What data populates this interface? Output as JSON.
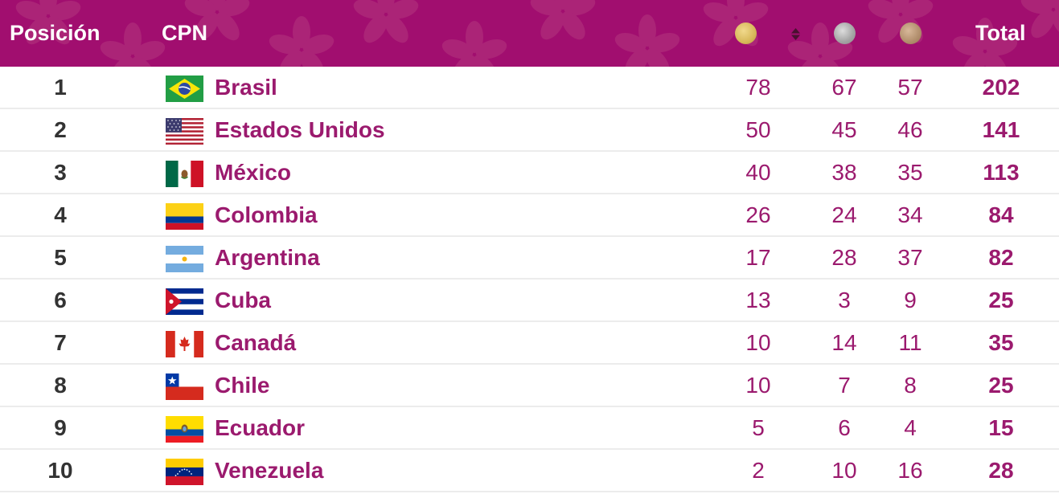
{
  "header": {
    "position_label": "Posición",
    "cpn_label": "CPN",
    "total_label": "Total",
    "medal_icons": [
      "gold-medal-icon",
      "silver-medal-icon",
      "bronze-medal-icon"
    ],
    "sort_icon": "sort-icon"
  },
  "colors": {
    "header_bg": "#a10e6f",
    "accent_text": "#9b1a6e",
    "gold": "#d7b85a",
    "silver": "#a3a3a3",
    "bronze": "#b18e6c"
  },
  "rows": [
    {
      "pos": "1",
      "country": "Brasil",
      "flag": "brazil-flag-icon",
      "gold": "78",
      "silver": "67",
      "bronze": "57",
      "total": "202"
    },
    {
      "pos": "2",
      "country": "Estados Unidos",
      "flag": "usa-flag-icon",
      "gold": "50",
      "silver": "45",
      "bronze": "46",
      "total": "141"
    },
    {
      "pos": "3",
      "country": "México",
      "flag": "mexico-flag-icon",
      "gold": "40",
      "silver": "38",
      "bronze": "35",
      "total": "113"
    },
    {
      "pos": "4",
      "country": "Colombia",
      "flag": "colombia-flag-icon",
      "gold": "26",
      "silver": "24",
      "bronze": "34",
      "total": "84"
    },
    {
      "pos": "5",
      "country": "Argentina",
      "flag": "argentina-flag-icon",
      "gold": "17",
      "silver": "28",
      "bronze": "37",
      "total": "82"
    },
    {
      "pos": "6",
      "country": "Cuba",
      "flag": "cuba-flag-icon",
      "gold": "13",
      "silver": "3",
      "bronze": "9",
      "total": "25"
    },
    {
      "pos": "7",
      "country": "Canadá",
      "flag": "canada-flag-icon",
      "gold": "10",
      "silver": "14",
      "bronze": "11",
      "total": "35"
    },
    {
      "pos": "8",
      "country": "Chile",
      "flag": "chile-flag-icon",
      "gold": "10",
      "silver": "7",
      "bronze": "8",
      "total": "25"
    },
    {
      "pos": "9",
      "country": "Ecuador",
      "flag": "ecuador-flag-icon",
      "gold": "5",
      "silver": "6",
      "bronze": "4",
      "total": "15"
    },
    {
      "pos": "10",
      "country": "Venezuela",
      "flag": "venezuela-flag-icon",
      "gold": "2",
      "silver": "10",
      "bronze": "16",
      "total": "28"
    }
  ]
}
